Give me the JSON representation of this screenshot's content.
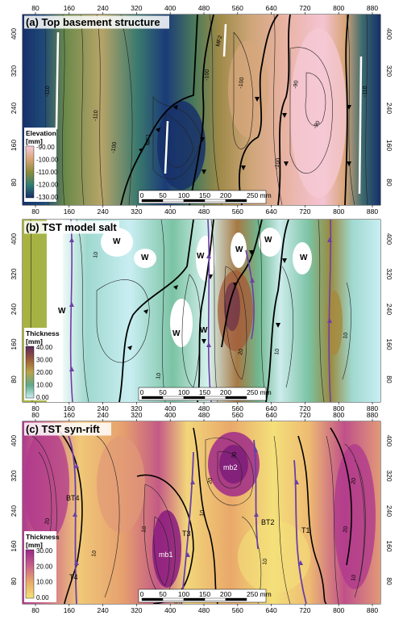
{
  "panels": [
    {
      "id": "a",
      "title": "(a) Top basement structure",
      "x_ticks": [
        "80",
        "160",
        "240",
        "320",
        "400",
        "480",
        "560",
        "640",
        "720",
        "800",
        "880"
      ],
      "y_ticks": [
        "400",
        "320",
        "240",
        "160",
        "80"
      ],
      "legend": {
        "title": "Elevation",
        "unit": "[mm]",
        "values": [
          "-90.00",
          "-100.00",
          "-110.00",
          "-120.00",
          "-130.00"
        ],
        "colors": [
          "#f7c8d6",
          "#d9a578",
          "#8c8c3a",
          "#2f7f74",
          "#1a2f6a"
        ]
      },
      "labels": [
        "MF1",
        "MF2"
      ],
      "contour_labels": [
        "-110",
        "-110",
        "-100",
        "-100",
        "-100",
        "-90",
        "-100",
        "-110",
        "-90"
      ],
      "scalebar": {
        "ticks": [
          "0",
          "50",
          "100",
          "150",
          "200",
          "250 mm"
        ]
      }
    },
    {
      "id": "b",
      "title": "(b) TST model salt",
      "x_ticks": [
        "80",
        "160",
        "240",
        "320",
        "400",
        "480",
        "560",
        "640",
        "720",
        "800",
        "880"
      ],
      "y_ticks": [
        "400",
        "320",
        "240",
        "160",
        "80"
      ],
      "legend": {
        "title": "Thickness",
        "unit": "[mm]",
        "values": [
          "40.00",
          "30.00",
          "20.00",
          "10.00",
          "0.00"
        ],
        "colors": [
          "#5a2a5a",
          "#9a5a3a",
          "#b9a34a",
          "#5fa98a",
          "#c9eef2"
        ]
      },
      "labels": [
        "W",
        "W",
        "W",
        "W",
        "W",
        "W",
        "W",
        "W",
        "W"
      ],
      "contour_labels": [
        "10",
        "10",
        "20",
        "10",
        "10"
      ],
      "scalebar": {
        "ticks": [
          "0",
          "50",
          "100",
          "150",
          "200",
          "250 mm"
        ]
      }
    },
    {
      "id": "c",
      "title": "(c) TST syn-rift",
      "x_ticks": [
        "80",
        "160",
        "240",
        "320",
        "400",
        "480",
        "560",
        "640",
        "720",
        "800",
        "880"
      ],
      "y_ticks": [
        "400",
        "320",
        "240",
        "160",
        "80"
      ],
      "legend": {
        "title": "Thickness",
        "unit": "[mm]",
        "values": [
          "30.00",
          "20.00",
          "10.00",
          "0.00"
        ],
        "colors": [
          "#9a2a8a",
          "#c8608c",
          "#e9a86a",
          "#f4e27a"
        ]
      },
      "labels": [
        "BT4",
        "T4",
        "mb1",
        "T3",
        "mb2",
        "BT2",
        "T1"
      ],
      "contour_labels": [
        "20",
        "10",
        "10",
        "10",
        "20",
        "30",
        "20",
        "10",
        "20",
        "10",
        "10"
      ],
      "scalebar": {
        "ticks": [
          "0",
          "50",
          "100",
          "150",
          "200",
          "250 mm"
        ]
      }
    }
  ]
}
